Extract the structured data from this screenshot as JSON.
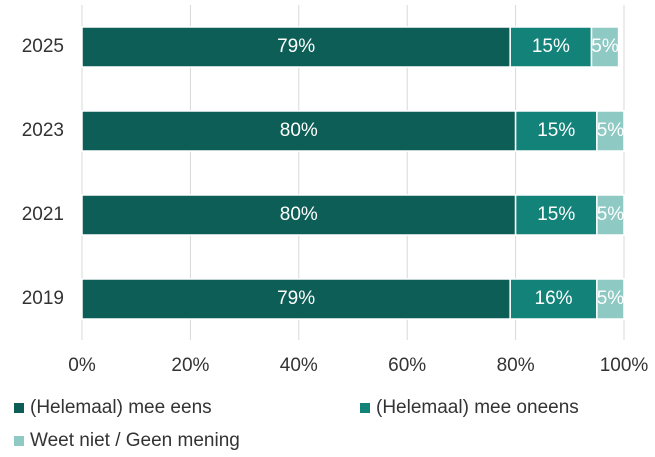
{
  "chart_data": {
    "type": "stacked-barh",
    "categories": [
      "2025",
      "2023",
      "2021",
      "2019"
    ],
    "series": [
      {
        "name": "(Helemaal) mee eens",
        "color": "#0d5e56",
        "values": [
          79,
          80,
          80,
          79
        ],
        "value_labels": [
          "79%",
          "80%",
          "80%",
          "79%"
        ]
      },
      {
        "name": "(Helemaal) mee oneens",
        "color": "#138379",
        "values": [
          15,
          15,
          15,
          16
        ],
        "value_labels": [
          "15%",
          "15%",
          "15%",
          "16%"
        ]
      },
      {
        "name": "Weet niet / Geen mening",
        "color": "#8ec9c3",
        "values": [
          5,
          5,
          5,
          5
        ],
        "value_labels": [
          "5%",
          "5%",
          "5%",
          "5%"
        ]
      }
    ],
    "xlim": [
      0,
      100
    ],
    "xticks": [
      {
        "value": 0,
        "label": "0%"
      },
      {
        "value": 20,
        "label": "20%"
      },
      {
        "value": 40,
        "label": "40%"
      },
      {
        "value": 60,
        "label": "60%"
      },
      {
        "value": 80,
        "label": "80%"
      },
      {
        "value": 100,
        "label": "100%"
      }
    ],
    "grid": true,
    "legend": "bottom"
  }
}
